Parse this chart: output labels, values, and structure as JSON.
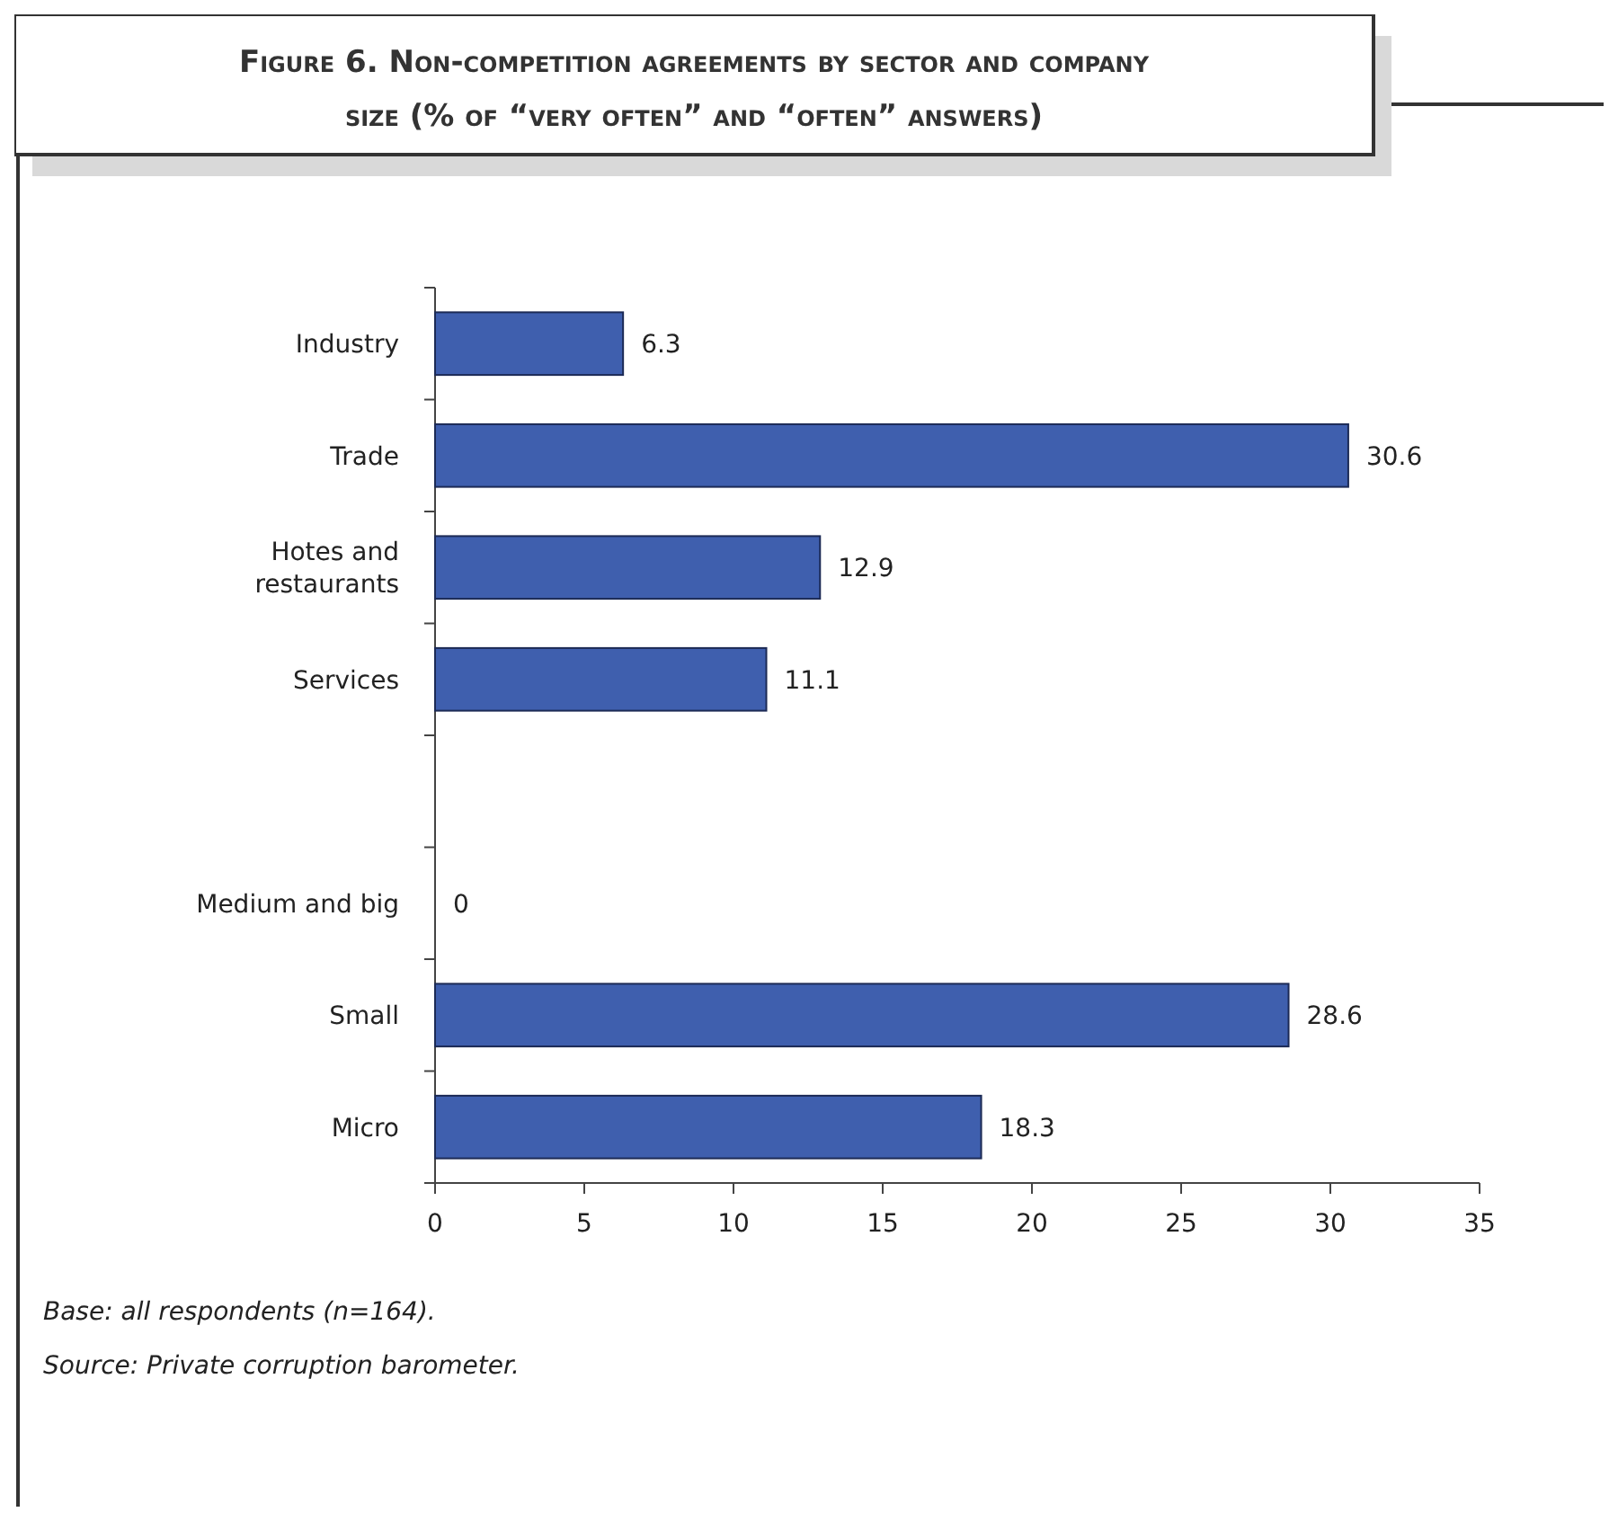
{
  "chart_data": {
    "type": "bar",
    "orientation": "horizontal",
    "title": "Figure 6. Non-competition agreements by sector and company size (% of “very often” and “often” answers)",
    "categories": [
      "Industry",
      "Trade",
      "Hotes and restaurants",
      "Services",
      null,
      "Medium and big",
      "Small",
      "Micro"
    ],
    "values": [
      6.3,
      30.6,
      12.9,
      11.1,
      null,
      0,
      28.6,
      18.3
    ],
    "color": "#3f5fae",
    "xlim": [
      0,
      35
    ],
    "xticks": [
      0,
      5,
      10,
      15,
      20,
      25,
      30,
      35
    ],
    "data_labels": true,
    "grid": false,
    "annotations": [
      "Base: all respondents (n=164).",
      "Source: Private corruption barometer."
    ]
  }
}
